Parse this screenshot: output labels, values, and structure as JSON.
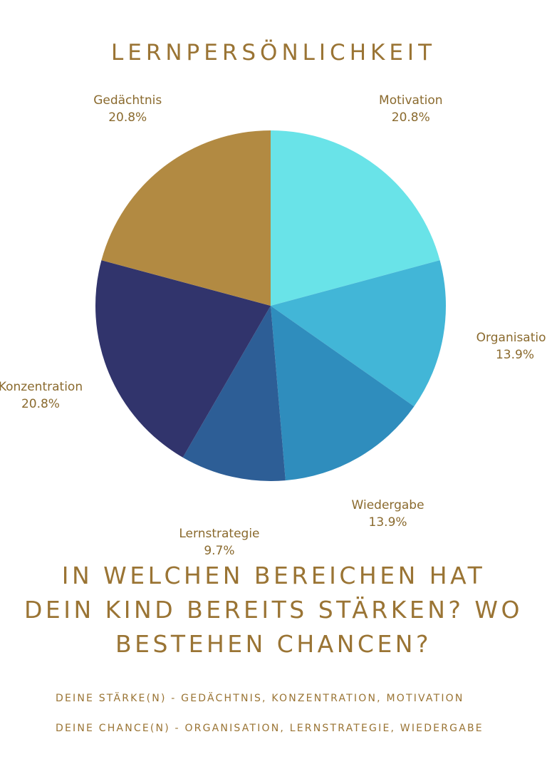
{
  "title": "LERNPERSÖNLICHKEIT",
  "chart_data": {
    "type": "pie",
    "slices": [
      {
        "label": "Motivation",
        "value": 20.8,
        "value_label": "20.8%",
        "color": "#69e3e8"
      },
      {
        "label": "Organisation",
        "value": 13.9,
        "value_label": "13.9%",
        "color": "#42b6d7"
      },
      {
        "label": "Wiedergabe",
        "value": 13.9,
        "value_label": "13.9%",
        "color": "#2f8dbd"
      },
      {
        "label": "Lernstrategie",
        "value": 9.7,
        "value_label": "9.7%",
        "color": "#2d5e96"
      },
      {
        "label": "Konzentration",
        "value": 20.8,
        "value_label": "20.8%",
        "color": "#31346c"
      },
      {
        "label": "Gedächtnis",
        "value": 20.8,
        "value_label": "20.8%",
        "color": "#b28a42"
      }
    ],
    "start": "top",
    "direction": "clockwise"
  },
  "question": {
    "line1": "IN WELCHEN BEREICHEN HAT",
    "line2": "DEIN KIND BEREITS STÄRKEN? WO",
    "line3": "BESTEHEN CHANCEN?"
  },
  "strengths": "DEINE STÄRKE(N) - GEDÄCHTNIS, KONZENTRATION, MOTIVATION",
  "chances": "DEINE CHANCE(N) - ORGANISATION, LERNSTRATEGIE, WIEDERGABE"
}
